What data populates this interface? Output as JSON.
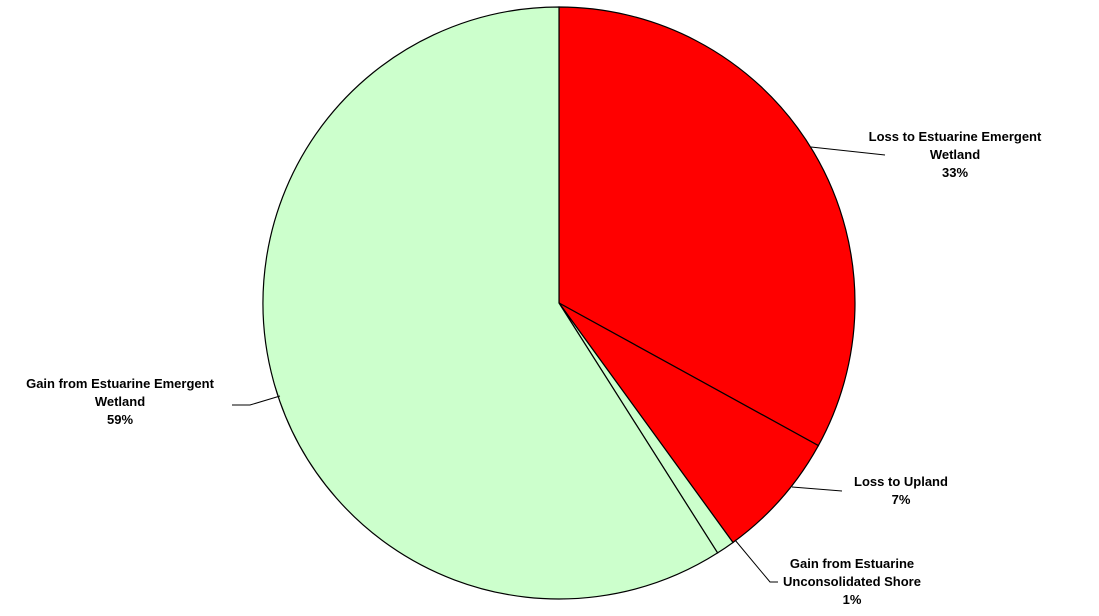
{
  "chart_data": {
    "type": "pie",
    "title": "",
    "start_angle_deg": 0,
    "direction": "clockwise",
    "slices": [
      {
        "label_lines": [
          "Loss to Estuarine Emergent",
          "Wetland"
        ],
        "value_label": "33%",
        "value": 33,
        "color": "#FF0000"
      },
      {
        "label_lines": [
          "Loss to Upland"
        ],
        "value_label": "7%",
        "value": 7,
        "color": "#FF0000"
      },
      {
        "label_lines": [
          "Gain from Estuarine",
          "Unconsolidated Shore"
        ],
        "value_label": "1%",
        "value": 1,
        "color": "#CCFFCC"
      },
      {
        "label_lines": [
          "Gain from Estuarine Emergent",
          "Wetland"
        ],
        "value_label": "59%",
        "value": 59,
        "color": "#CCFFCC"
      }
    ],
    "legend": "none",
    "grid": false
  }
}
